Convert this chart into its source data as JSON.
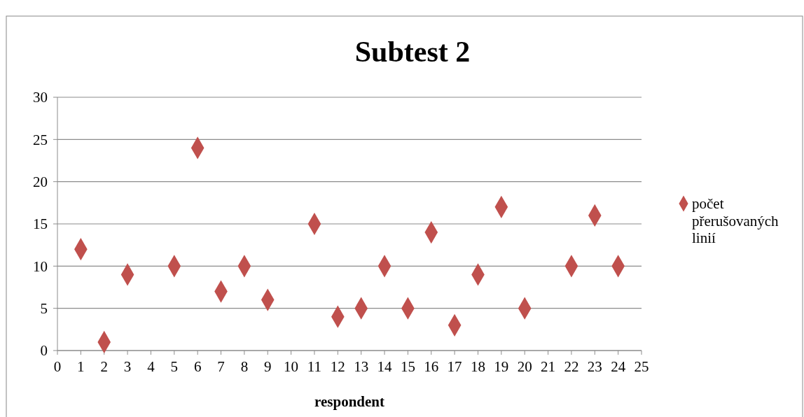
{
  "chart_data": {
    "type": "scatter",
    "title": "Subtest 2",
    "xlabel": "respondent",
    "x": [
      1,
      2,
      3,
      5,
      6,
      7,
      8,
      9,
      11,
      12,
      13,
      14,
      15,
      16,
      17,
      18,
      19,
      20,
      22,
      23,
      24
    ],
    "series": [
      {
        "name": "počet přerušovaných linií",
        "color": "#c0504d",
        "values": [
          12,
          1,
          9,
          10,
          24,
          7,
          10,
          6,
          15,
          4,
          5,
          10,
          5,
          14,
          3,
          9,
          17,
          5,
          10,
          16,
          10
        ]
      }
    ],
    "xlim": [
      0,
      25
    ],
    "xticks": [
      0,
      1,
      2,
      3,
      4,
      5,
      6,
      7,
      8,
      9,
      10,
      11,
      12,
      13,
      14,
      15,
      16,
      17,
      18,
      19,
      20,
      21,
      22,
      23,
      24,
      25
    ],
    "ylim": [
      0,
      30
    ],
    "yticks": [
      0,
      5,
      10,
      15,
      20,
      25,
      30
    ],
    "grid": "y",
    "legend": "right",
    "marker": "diamond"
  }
}
